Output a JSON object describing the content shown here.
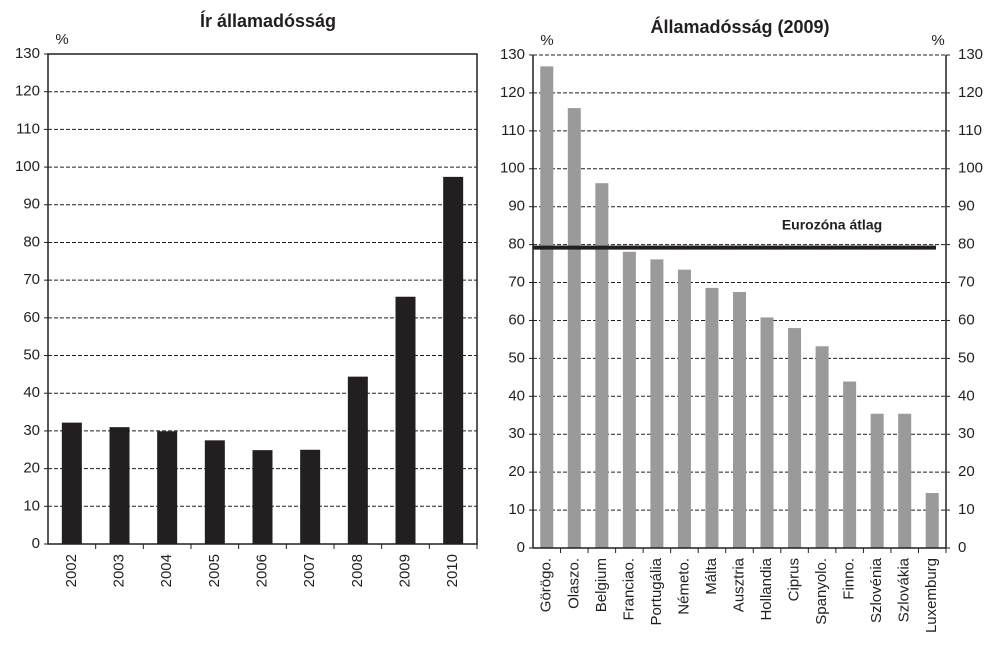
{
  "chart_data": [
    {
      "type": "bar",
      "title": "Ír államadósság",
      "ylabel": "%",
      "categories": [
        "2002",
        "2003",
        "2004",
        "2005",
        "2006",
        "2007",
        "2008",
        "2009",
        "2010"
      ],
      "values": [
        32.2,
        31,
        29.9,
        27.5,
        24.9,
        25,
        44.4,
        65.6,
        97.4
      ],
      "color": "#231f20",
      "ylim": [
        0,
        130
      ],
      "yticks": [
        0,
        10,
        20,
        30,
        40,
        50,
        60,
        70,
        80,
        90,
        100,
        110,
        120,
        130
      ],
      "grid": true
    },
    {
      "type": "bar",
      "title": "Államadósság (2009)",
      "ylabel": "%",
      "y2label": "%",
      "categories": [
        "Görögo.",
        "Olaszo.",
        "Belgium",
        "Franciao.",
        "Portugália",
        "Németo.",
        "Málta",
        "Ausztria",
        "Hollandia",
        "Ciprus",
        "Spanyolo.",
        "Finno.",
        "Szlovénia",
        "Szlovákia",
        "Luxemburg"
      ],
      "values": [
        127,
        116,
        96.2,
        78.1,
        76.1,
        73.4,
        68.6,
        67.5,
        60.8,
        58,
        53.2,
        43.9,
        35.4,
        35.4,
        14.5
      ],
      "color": "#9a9a9a",
      "ylim": [
        0,
        130
      ],
      "yticks": [
        0,
        10,
        20,
        30,
        40,
        50,
        60,
        70,
        80,
        90,
        100,
        110,
        120,
        130
      ],
      "y2lim": [
        0,
        130
      ],
      "y2ticks": [
        0,
        10,
        20,
        30,
        40,
        50,
        60,
        70,
        80,
        90,
        100,
        110,
        120,
        130
      ],
      "grid": true,
      "annotation": {
        "text": "Eurozóna átlag",
        "value": 79.2
      }
    }
  ]
}
